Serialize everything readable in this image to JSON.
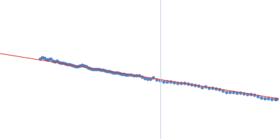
{
  "chart_data": {
    "type": "scatter",
    "xlim": [
      0,
      400
    ],
    "ylim": [
      0,
      200
    ],
    "tick_labels": false,
    "grid": false,
    "vline_x": 230,
    "series": [
      {
        "type": "scatter",
        "color": "#3a6bb5",
        "marker": "circle",
        "x": [
          58,
          61,
          64,
          67,
          70,
          73,
          76,
          79,
          82,
          85,
          88,
          91,
          94,
          97,
          100,
          103,
          106,
          109,
          112,
          115,
          118,
          121,
          124,
          127,
          130,
          133,
          136,
          139,
          142,
          145,
          148,
          151,
          154,
          157,
          160,
          163,
          166,
          169,
          172,
          175,
          178,
          181,
          184,
          188,
          192,
          196,
          200,
          204,
          208,
          212,
          216,
          220,
          225,
          230,
          235,
          240,
          245,
          250,
          255,
          260,
          265,
          270,
          275,
          280,
          285,
          290,
          295,
          300,
          305,
          310,
          315,
          320,
          325,
          330,
          335,
          340,
          345,
          350,
          355,
          360,
          365,
          370,
          375,
          380,
          385,
          390,
          395,
          397
        ],
        "values": [
          115,
          117,
          116,
          114,
          114,
          115,
          112,
          111,
          112,
          110,
          109,
          109,
          108,
          107,
          107,
          106,
          105,
          104,
          104,
          105,
          106,
          105,
          104,
          102,
          101,
          100,
          100,
          100,
          100,
          99,
          99,
          98,
          97,
          97,
          96,
          95,
          95,
          95,
          94,
          93,
          93,
          92,
          92,
          92,
          91,
          91,
          91,
          89,
          87,
          86,
          86,
          88,
          85,
          84,
          82,
          82,
          82,
          81,
          80,
          80,
          80,
          79,
          78,
          77,
          76,
          74,
          75,
          73,
          73,
          72,
          71,
          69,
          67,
          67,
          67,
          66,
          66,
          65,
          64,
          64,
          63,
          61,
          59,
          58,
          58,
          57,
          57,
          57
        ]
      },
      {
        "type": "line",
        "color": "#e03a2e",
        "line_style": "solid",
        "x": [
          0,
          400
        ],
        "values": [
          123,
          58
        ]
      }
    ]
  }
}
